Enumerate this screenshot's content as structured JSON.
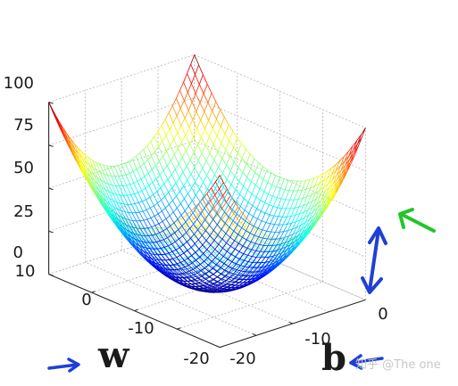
{
  "chart_data": {
    "type": "surface",
    "function": "z = w^2 / 8 + b^2 / 8",
    "w": {
      "min": -20,
      "max": 20,
      "step": 1
    },
    "b": {
      "min": -20,
      "max": 20,
      "step": 1
    },
    "z_ticks": [
      0,
      25,
      50,
      75,
      100
    ],
    "w_ticks": [
      -20,
      -10,
      0,
      10
    ],
    "b_ticks": [
      -20,
      -10,
      0
    ],
    "zlim": [
      0,
      100
    ],
    "colormap": "jet",
    "grid": true
  },
  "labels": {
    "z": [
      "0",
      "25",
      "50",
      "75",
      "100"
    ],
    "w": [
      "10",
      "0",
      "-10",
      "-20"
    ],
    "b": [
      "-20",
      "-10",
      "0"
    ]
  },
  "annotations": {
    "w_label": "w",
    "b_label": "b",
    "arrow_color_blue": "#1f3fd6",
    "arrow_color_green": "#22c52c"
  },
  "watermark": "知乎 @The one"
}
